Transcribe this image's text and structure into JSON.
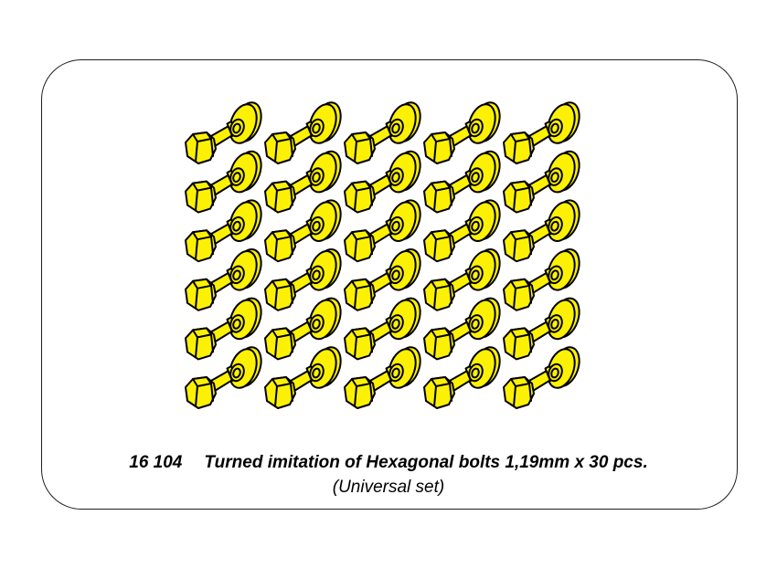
{
  "page": {
    "background": "#ffffff",
    "border_color": "#1f1f1f"
  },
  "illustration": {
    "subject": "turned-hexagonal-bolts",
    "rows": 6,
    "cols": 5,
    "count": 30,
    "bolt_fill": "#FCF105",
    "bolt_outline": "#000000"
  },
  "footer": {
    "code": "16 104",
    "title": "Turned imitation of Hexagonal bolts 1,19mm x 30 pcs.",
    "subtitle": "(Universal set)"
  }
}
